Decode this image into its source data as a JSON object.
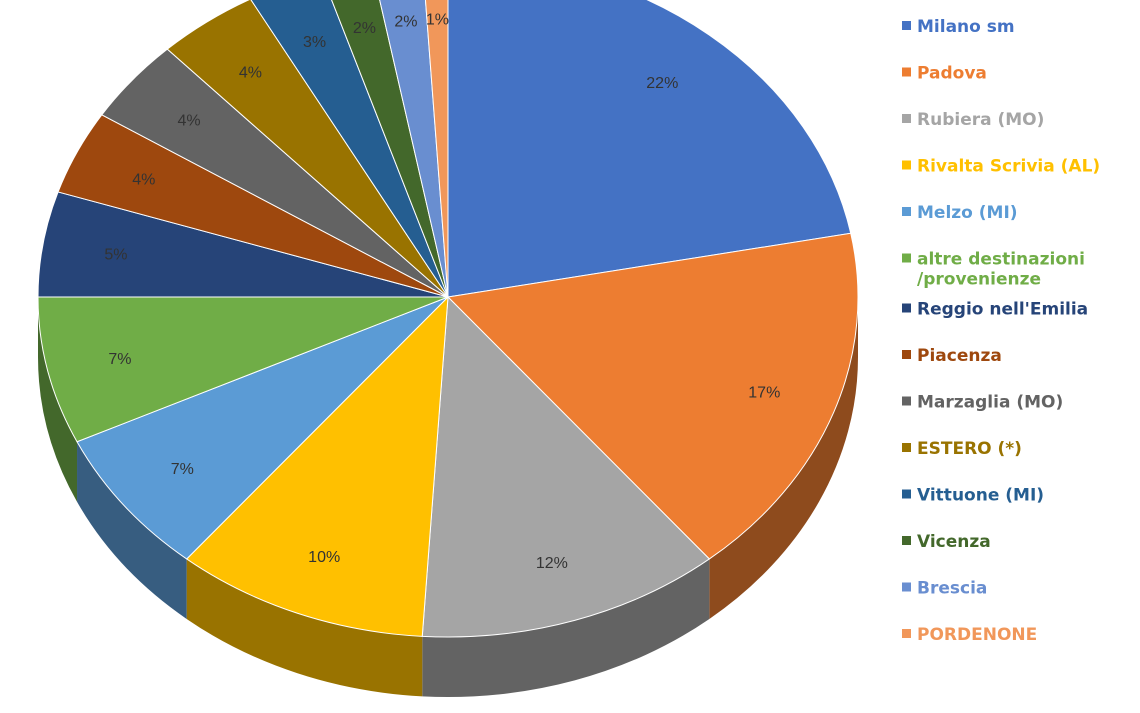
{
  "chart_data": {
    "type": "pie",
    "style": "3d",
    "slices": [
      {
        "label": "Milano sm",
        "value": 22,
        "display": "22%",
        "color": "#4472C4"
      },
      {
        "label": "Padova",
        "value": 17,
        "display": "17%",
        "color": "#ED7D31"
      },
      {
        "label": "Rubiera (MO)",
        "value": 12,
        "display": "12%",
        "color": "#A5A5A5"
      },
      {
        "label": "Rivalta Scrivia (AL)",
        "value": 10,
        "display": "10%",
        "color": "#FFC000"
      },
      {
        "label": "Melzo (MI)",
        "value": 7,
        "display": "7%",
        "color": "#5B9BD5"
      },
      {
        "label": "altre destinazioni /provenienze",
        "value": 7,
        "display": "7%",
        "color": "#70AD47"
      },
      {
        "label": "Reggio nell'Emilia",
        "value": 5,
        "display": "5%",
        "color": "#264478"
      },
      {
        "label": "Piacenza",
        "value": 4,
        "display": "4%",
        "color": "#9E480E"
      },
      {
        "label": "Marzaglia (MO)",
        "value": 4,
        "display": "4%",
        "color": "#636363"
      },
      {
        "label": "ESTERO (*)",
        "value": 4,
        "display": "4%",
        "color": "#997300"
      },
      {
        "label": "Vittuone (MI)",
        "value": 3,
        "display": "3%",
        "color": "#255E91"
      },
      {
        "label": "Vicenza",
        "value": 2,
        "display": "2%",
        "color": "#43682B"
      },
      {
        "label": "Brescia",
        "value": 2,
        "display": "2%",
        "color": "#698ED0"
      },
      {
        "label": "PORDENONE",
        "value": 1,
        "display": "1%",
        "color": "#F1975A"
      }
    ],
    "legend_position": "right"
  }
}
